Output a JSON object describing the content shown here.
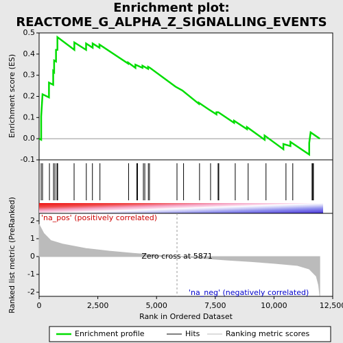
{
  "chart_data": {
    "type": "enrichment",
    "title": [
      "Enrichment plot:",
      "REACTOME_G_ALPHA_Z_SIGNALLING_EVENTS"
    ],
    "xlabel": "Rank in Ordered Dataset",
    "ylabel": "Enrichment score (ES)",
    "xlim": [
      0,
      12500
    ],
    "xticks": [
      0,
      {
        "value": 2500,
        "label": "2,500"
      },
      {
        "value": 5000,
        "label": "5,000"
      },
      {
        "value": 7500,
        "label": "7,500"
      },
      {
        "value": 10000,
        "label": "10,000"
      },
      {
        "value": 12500,
        "label": "12,500"
      }
    ],
    "ylim": [
      -0.1,
      0.5
    ],
    "yticks": [
      -0.1,
      {
        "value": 0,
        "label": "0.0"
      },
      0.1,
      0.2,
      0.3,
      0.4,
      0.5
    ],
    "series": [
      {
        "name": "Enrichment profile",
        "color": "#00dd00",
        "x": [
          0,
          88,
          88,
          146,
          420,
          420,
          600,
          600,
          640,
          640,
          720,
          720,
          780,
          780,
          1500,
          1500,
          2000,
          2000,
          2280,
          2280,
          2570,
          2570,
          3790,
          3790,
          4100,
          4100,
          4400,
          4400,
          4640,
          4640,
          4720,
          5820,
          6100,
          6800,
          6800,
          7200,
          7550,
          7550,
          7630,
          8300,
          8300,
          8850,
          8850,
          9600,
          9600,
          10400,
          10400,
          10700,
          10700,
          11500,
          11500,
          11560,
          11950
        ],
        "values": [
          0,
          -0.005,
          0.105,
          0.21,
          0.195,
          0.265,
          0.255,
          0.32,
          0.315,
          0.37,
          0.365,
          0.42,
          0.42,
          0.48,
          0.42,
          0.455,
          0.42,
          0.45,
          0.43,
          0.45,
          0.43,
          0.445,
          0.355,
          0.36,
          0.335,
          0.35,
          0.335,
          0.345,
          0.33,
          0.34,
          0.335,
          0.245,
          0.228,
          0.165,
          0.17,
          0.14,
          0.115,
          0.125,
          0.125,
          0.075,
          0.085,
          0.045,
          0.055,
          -0.005,
          0.015,
          -0.05,
          -0.025,
          -0.035,
          -0.015,
          -0.075,
          -0.02,
          0.03,
          0
        ]
      }
    ],
    "hits": {
      "name": "Hits",
      "color": "#000000",
      "x": [
        88,
        146,
        440,
        615,
        675,
        760,
        790,
        1490,
        2010,
        2270,
        2590,
        3810,
        4160,
        4190,
        4440,
        4500,
        4650,
        4700,
        5870,
        6150,
        6830,
        7300,
        7620,
        7650,
        8350,
        8900,
        9660,
        10510,
        10800,
        11620,
        11650,
        11680
      ]
    },
    "metric": {
      "name": "Ranking metric scores",
      "color": "#bbbbbb",
      "ylabel": "Ranked list metric (PreRanked)",
      "ylim": [
        -2.23,
        2.42
      ],
      "yticks": [
        -2,
        -1,
        0,
        1,
        2
      ],
      "x": [
        0,
        200,
        500,
        1000,
        2000,
        3000,
        4000,
        5000,
        5871,
        7000,
        8000,
        9000,
        10000,
        11000,
        11500,
        11800,
        11900,
        11950
      ],
      "values": [
        1.8,
        1.3,
        0.9,
        0.7,
        0.45,
        0.3,
        0.18,
        0.08,
        0,
        -0.1,
        -0.2,
        -0.28,
        -0.38,
        -0.5,
        -0.7,
        -1.1,
        -1.6,
        -2.2
      ]
    },
    "pos_label": "'na_pos' (positively correlated)",
    "neg_label": "'na_neg' (negatively correlated)",
    "zero_cross": {
      "label": "Zero cross at 5871",
      "x": 5871
    }
  }
}
